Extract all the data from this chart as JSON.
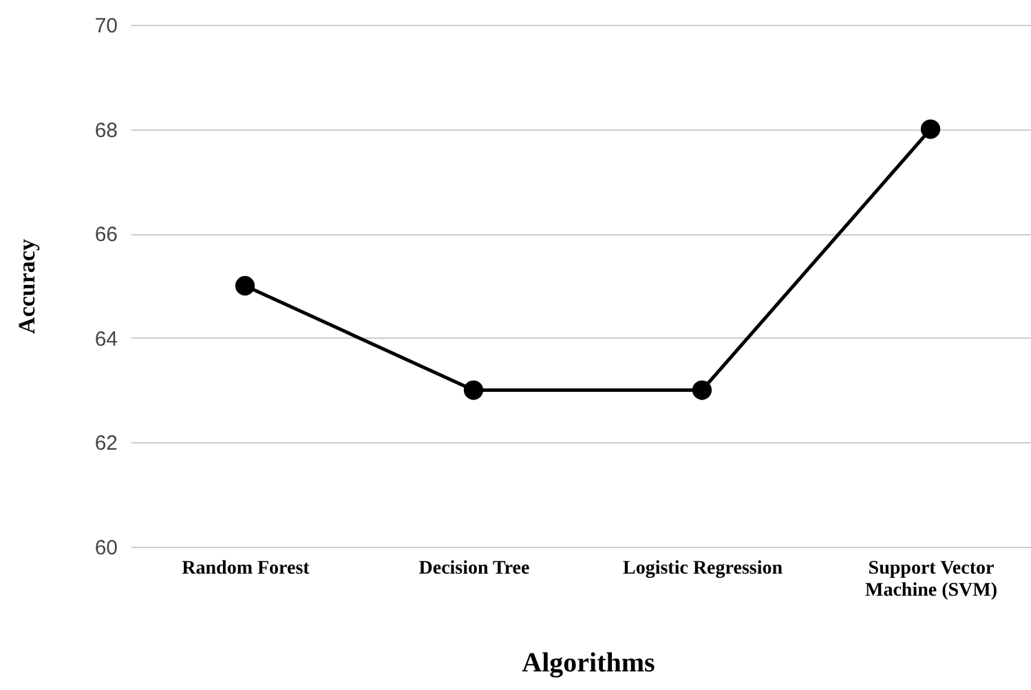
{
  "chart_data": {
    "type": "line",
    "xlabel": "Algorithms",
    "ylabel": "Accuracy",
    "categories": [
      "Random Forest",
      "Decision Tree",
      "Logistic Regression",
      "Support Vector Machine (SVM)"
    ],
    "series": [
      {
        "color": "#000000",
        "values": [
          65,
          63,
          63,
          68
        ]
      }
    ],
    "ylim": [
      60,
      70
    ],
    "yticks": [
      60,
      62,
      64,
      66,
      68,
      70
    ],
    "grid": "y",
    "marker": "circle",
    "line_style": "solid"
  }
}
